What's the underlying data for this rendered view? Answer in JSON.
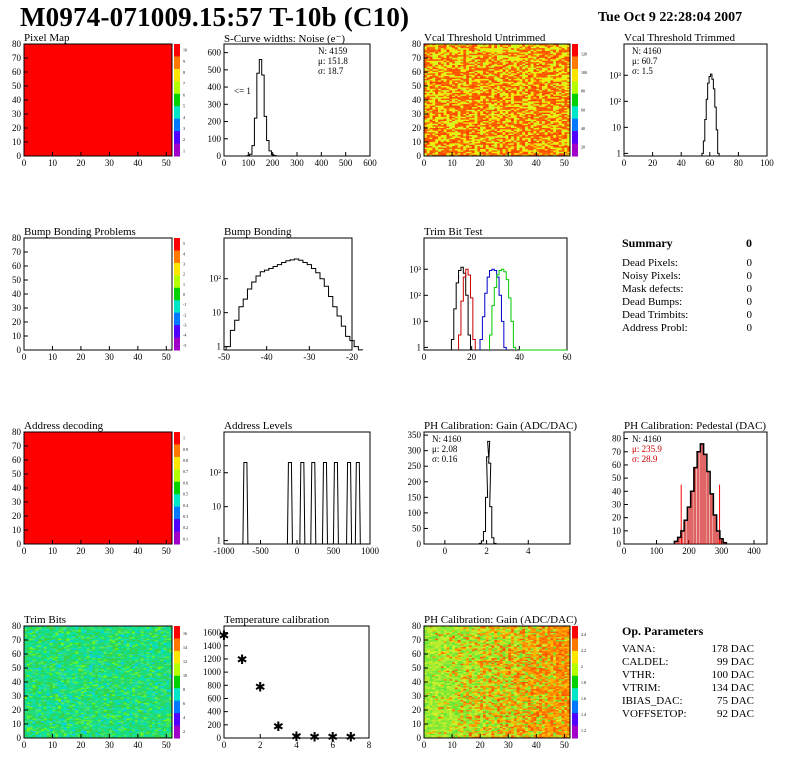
{
  "header": {
    "title": "M0974-071009.15:57 T-10b (C10)",
    "date": "Tue Oct  9 22:28:04 2007"
  },
  "colors": {
    "red": "#ff0000",
    "accent_red": "#cc0000",
    "frame": "#000000",
    "green": "#00cc00",
    "blue": "#0000cc"
  },
  "chart_data": [
    {
      "id": "pixel-map",
      "type": "heatmap",
      "title": "Pixel Map",
      "x_ticks": [
        0,
        10,
        20,
        30,
        40,
        50
      ],
      "y_ticks": [
        0,
        10,
        20,
        30,
        40,
        50,
        60,
        70,
        80
      ],
      "fill": "uniform-red",
      "palette_ticks": [
        "10",
        "9",
        "8",
        "7",
        "6",
        "5",
        "4",
        "3",
        "2",
        "1"
      ]
    },
    {
      "id": "scurve",
      "type": "histogram",
      "title": "S-Curve widths: Noise (e⁻)",
      "x_ticks": [
        0,
        100,
        200,
        300,
        400,
        500,
        600
      ],
      "y_ticks": [
        0,
        100,
        200,
        300,
        400,
        500,
        600
      ],
      "xlim": [
        0,
        600
      ],
      "ylim": [
        0,
        650
      ],
      "stats": [
        "N: 4159",
        "μ: 151.8",
        "σ: 18.7"
      ],
      "note": "<= 1",
      "x": [
        100,
        110,
        120,
        130,
        140,
        150,
        160,
        170,
        180,
        190,
        200,
        210,
        220
      ],
      "values": [
        2,
        10,
        60,
        220,
        480,
        560,
        470,
        230,
        90,
        30,
        8,
        2,
        0
      ]
    },
    {
      "id": "vcal-untrimmed",
      "type": "heatmap",
      "title": "Vcal Threshold Untrimmed",
      "x_ticks": [
        0,
        10,
        20,
        30,
        40,
        50
      ],
      "y_ticks": [
        0,
        10,
        20,
        30,
        40,
        50,
        60,
        70,
        80
      ],
      "fill": "noisy-orange-yellow",
      "palette_ticks": [
        "120",
        "100",
        "80",
        "60",
        "40",
        "20"
      ]
    },
    {
      "id": "vcal-trimmed",
      "type": "histogram",
      "title": "Vcal Threshold Trimmed",
      "scale": "log",
      "x_ticks": [
        0,
        20,
        40,
        60,
        80,
        100
      ],
      "y_ticks": [
        "1",
        "10",
        "10²",
        "10³"
      ],
      "stats": [
        "N: 4160",
        "μ: 60.7",
        "σ:  1.5"
      ],
      "x": [
        55,
        56,
        57,
        58,
        59,
        60,
        61,
        62,
        63,
        64,
        65,
        66
      ],
      "values": [
        1,
        3,
        20,
        120,
        500,
        900,
        1100,
        700,
        300,
        60,
        8,
        1
      ]
    },
    {
      "id": "bump-problems",
      "type": "heatmap",
      "title": "Bump Bonding Problems",
      "x_ticks": [
        0,
        10,
        20,
        30,
        40,
        50
      ],
      "y_ticks": [
        0,
        10,
        20,
        30,
        40,
        50,
        60,
        70,
        80
      ],
      "fill": "empty",
      "palette_ticks": [
        "5",
        "4",
        "3",
        "2",
        "1",
        "0",
        "-1",
        "-2",
        "-3",
        "-4",
        "-5"
      ]
    },
    {
      "id": "bump-bonding",
      "type": "histogram",
      "title": "Bump Bonding",
      "scale": "log",
      "x_ticks": [
        -50,
        -40,
        -30,
        -20
      ],
      "y_ticks": [
        "1",
        "10",
        "10²"
      ],
      "x": [
        -49,
        -48,
        -47,
        -46,
        -45,
        -44,
        -43,
        -42,
        -41,
        -40,
        -39,
        -38,
        -37,
        -36,
        -35,
        -34,
        -33,
        -32,
        -31,
        -30,
        -29,
        -28,
        -27,
        -26,
        -25,
        -24,
        -23,
        -22,
        -21,
        -20,
        -19,
        -18
      ],
      "values": [
        1,
        3,
        6,
        15,
        25,
        50,
        80,
        120,
        160,
        180,
        200,
        230,
        260,
        300,
        340,
        360,
        380,
        350,
        300,
        260,
        200,
        150,
        100,
        60,
        30,
        15,
        8,
        4,
        2,
        1.5,
        1,
        0.8
      ]
    },
    {
      "id": "trim-bit-test",
      "type": "histogram",
      "title": "Trim Bit Test",
      "scale": "log",
      "x_ticks": [
        0,
        20,
        40,
        60
      ],
      "y_ticks": [
        "1",
        "10",
        "10²",
        "10³"
      ],
      "series": [
        {
          "color": "#000000",
          "x": [
            12,
            13,
            14,
            15,
            16,
            17,
            18,
            19
          ],
          "values": [
            2,
            30,
            300,
            900,
            1200,
            700,
            100,
            3
          ]
        },
        {
          "color": "#cc0000",
          "x": [
            15,
            16,
            17,
            18,
            19,
            20,
            21
          ],
          "values": [
            3,
            60,
            500,
            1000,
            600,
            80,
            2
          ]
        },
        {
          "color": "#0000cc",
          "x": [
            24,
            25,
            26,
            27,
            28,
            29,
            30,
            31,
            32,
            33,
            34
          ],
          "values": [
            2,
            15,
            120,
            500,
            900,
            1000,
            900,
            500,
            100,
            10,
            1
          ]
        },
        {
          "color": "#00cc00",
          "x": [
            28,
            29,
            30,
            31,
            32,
            33,
            34,
            35,
            36,
            37,
            38
          ],
          "values": [
            3,
            40,
            200,
            600,
            900,
            1000,
            800,
            400,
            80,
            10,
            1
          ]
        }
      ]
    },
    {
      "id": "address-decoding",
      "type": "heatmap",
      "title": "Address decoding",
      "x_ticks": [
        0,
        10,
        20,
        30,
        40,
        50
      ],
      "y_ticks": [
        0,
        10,
        20,
        30,
        40,
        50,
        60,
        70,
        80
      ],
      "fill": "uniform-red",
      "palette_ticks": [
        "1",
        "0.9",
        "0.8",
        "0.7",
        "0.6",
        "0.5",
        "0.4",
        "0.3",
        "0.2",
        "0.1"
      ]
    },
    {
      "id": "address-levels",
      "type": "histogram",
      "title": "Address Levels",
      "scale": "log",
      "x_ticks": [
        -1000,
        -500,
        0,
        500,
        1000
      ],
      "y_ticks": [
        "1",
        "10",
        "10²"
      ],
      "peaks": [
        -700,
        -90,
        80,
        230,
        390,
        540,
        720,
        840
      ]
    },
    {
      "id": "ph-gain",
      "type": "histogram",
      "title": "PH Calibration: Gain (ADC/DAC)",
      "x_ticks": [
        0,
        2,
        4
      ],
      "y_ticks": [
        0,
        50,
        100,
        150,
        200,
        250,
        300,
        350
      ],
      "xlim": [
        -1,
        6
      ],
      "ylim": [
        0,
        360
      ],
      "stats": [
        "N: 4160",
        "μ: 2.08",
        "σ: 0.16"
      ],
      "x": [
        1.7,
        1.8,
        1.9,
        2.0,
        2.05,
        2.1,
        2.15,
        2.2,
        2.3,
        2.4
      ],
      "values": [
        2,
        10,
        40,
        150,
        280,
        330,
        260,
        120,
        20,
        2
      ]
    },
    {
      "id": "ph-pedestal",
      "type": "histogram",
      "title": "PH Calibration: Pedestal (DAC)",
      "x_ticks": [
        0,
        100,
        200,
        300,
        400
      ],
      "y_ticks": [
        0,
        10,
        20,
        30,
        40,
        50,
        60,
        70,
        80
      ],
      "xlim": [
        0,
        440
      ],
      "ylim": [
        0,
        85
      ],
      "stats": [
        "N: 4160",
        "μ: 235.9",
        "σ: 28.9"
      ],
      "x": [
        160,
        170,
        180,
        190,
        200,
        210,
        220,
        230,
        240,
        250,
        260,
        270,
        280,
        290,
        300,
        310
      ],
      "values": [
        2,
        5,
        10,
        18,
        28,
        40,
        58,
        70,
        76,
        68,
        55,
        38,
        22,
        10,
        4,
        1
      ],
      "cut_lines": [
        176,
        294
      ]
    },
    {
      "id": "trim-bits",
      "type": "heatmap",
      "title": "Trim Bits",
      "x_ticks": [
        0,
        10,
        20,
        30,
        40,
        50
      ],
      "y_ticks": [
        0,
        10,
        20,
        30,
        40,
        50,
        60,
        70,
        80
      ],
      "fill": "noisy-green-cyan",
      "palette_ticks": [
        "16",
        "14",
        "12",
        "10",
        "8",
        "6",
        "4",
        "2"
      ]
    },
    {
      "id": "temp-cal",
      "type": "scatter",
      "title": "Temperature calibration",
      "x_ticks": [
        0,
        2,
        4,
        6,
        8
      ],
      "y_ticks": [
        0,
        200,
        400,
        600,
        800,
        1000,
        1200,
        1400,
        1600
      ],
      "xlim": [
        0,
        8
      ],
      "ylim": [
        0,
        1700
      ],
      "x": [
        0,
        1,
        2,
        3,
        4,
        5,
        6,
        7
      ],
      "values": [
        1560,
        1200,
        780,
        180,
        30,
        25,
        25,
        25
      ]
    },
    {
      "id": "ph-gain-map",
      "type": "heatmap",
      "title": "PH Calibration: Gain (ADC/DAC)",
      "x_ticks": [
        0,
        10,
        20,
        30,
        40,
        50
      ],
      "y_ticks": [
        0,
        10,
        20,
        30,
        40,
        50,
        60,
        70,
        80
      ],
      "fill": "noisy-green-orange",
      "palette_ticks": [
        "2.4",
        "2.2",
        "2",
        "1.8",
        "1.6",
        "1.4",
        "1.2"
      ]
    }
  ],
  "summary": {
    "title": "Summary",
    "total": "0",
    "rows": [
      {
        "label": "Dead Pixels:",
        "value": "0"
      },
      {
        "label": "Noisy Pixels:",
        "value": "0"
      },
      {
        "label": "Mask defects:",
        "value": "0"
      },
      {
        "label": "Dead Bumps:",
        "value": "0"
      },
      {
        "label": "Dead Trimbits:",
        "value": "0"
      },
      {
        "label": "Address Probl:",
        "value": "0"
      }
    ]
  },
  "op_params": {
    "title": "Op. Parameters",
    "rows": [
      {
        "label": "VANA:",
        "value": "178 DAC"
      },
      {
        "label": "CALDEL:",
        "value": "99 DAC"
      },
      {
        "label": "VTHR:",
        "value": "100 DAC"
      },
      {
        "label": "VTRIM:",
        "value": "134 DAC"
      },
      {
        "label": "IBIAS_DAC:",
        "value": "75 DAC"
      },
      {
        "label": "VOFFSETOP:",
        "value": "92 DAC"
      }
    ]
  }
}
